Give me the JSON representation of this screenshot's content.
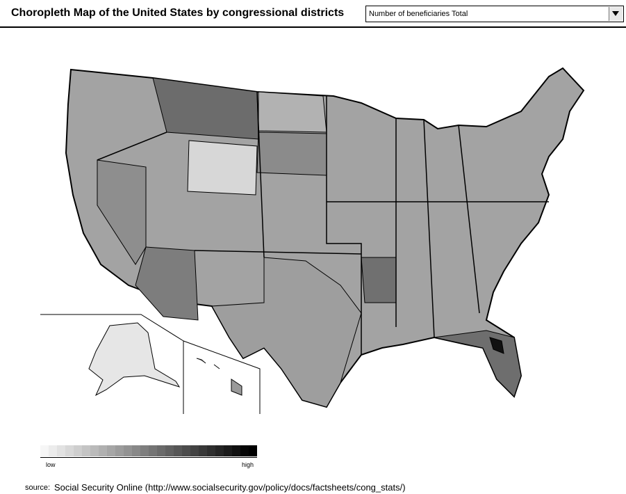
{
  "header": {
    "title": "Choropleth Map of the United States by congressional districts",
    "selector_value": "Number of beneficiaries Total"
  },
  "legend": {
    "low_label": "low",
    "high_label": "high",
    "ramp": [
      "#f6f6f6",
      "#ececec",
      "#e2e2e2",
      "#d8d8d8",
      "#cecece",
      "#c4c4c4",
      "#bababa",
      "#b0b0b0",
      "#a6a6a6",
      "#9c9c9c",
      "#929292",
      "#888888",
      "#7e7e7e",
      "#747474",
      "#6a6a6a",
      "#606060",
      "#565656",
      "#4c4c4c",
      "#424242",
      "#383838",
      "#2e2e2e",
      "#242424",
      "#1a1a1a",
      "#101010",
      "#060606",
      "#000000"
    ]
  },
  "source": {
    "label": "source:",
    "text": "Social Security Online (http://www.socialsecurity.gov/policy/docs/factsheets/cong_stats/)"
  }
}
